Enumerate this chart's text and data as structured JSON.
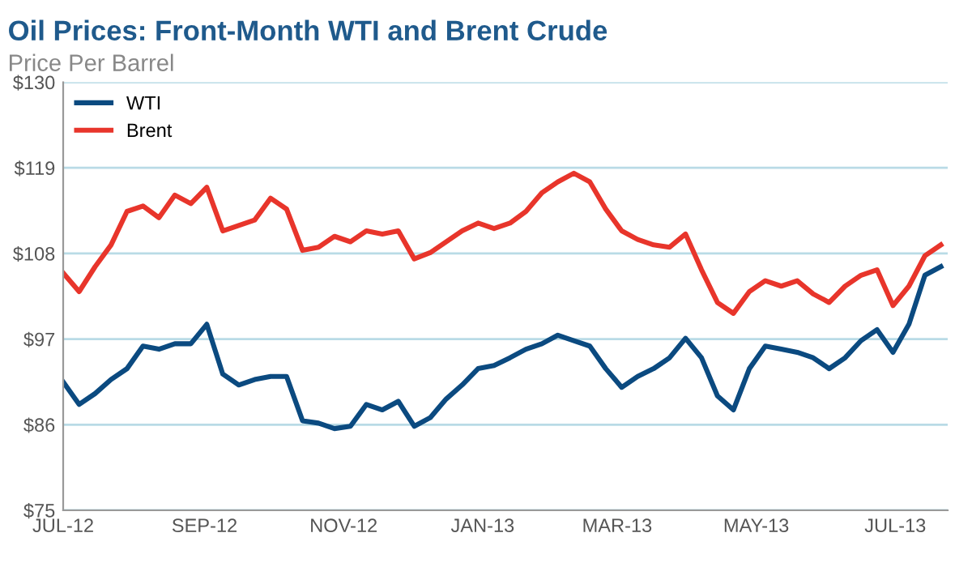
{
  "chart_data": {
    "type": "line",
    "title": "Oil Prices: Front-Month WTI and Brent Crude",
    "subtitle": "Price Per Barrel",
    "x": [
      "2012-07-01",
      "2012-07-08",
      "2012-07-15",
      "2012-07-22",
      "2012-07-29",
      "2012-08-05",
      "2012-08-12",
      "2012-08-19",
      "2012-08-26",
      "2012-09-02",
      "2012-09-09",
      "2012-09-16",
      "2012-09-23",
      "2012-09-30",
      "2012-10-07",
      "2012-10-14",
      "2012-10-21",
      "2012-10-28",
      "2012-11-04",
      "2012-11-11",
      "2012-11-18",
      "2012-11-25",
      "2012-12-02",
      "2012-12-09",
      "2012-12-16",
      "2012-12-23",
      "2012-12-30",
      "2013-01-06",
      "2013-01-13",
      "2013-01-20",
      "2013-01-27",
      "2013-02-03",
      "2013-02-10",
      "2013-02-17",
      "2013-02-24",
      "2013-03-03",
      "2013-03-10",
      "2013-03-17",
      "2013-03-24",
      "2013-03-31",
      "2013-04-07",
      "2013-04-14",
      "2013-04-21",
      "2013-04-28",
      "2013-05-05",
      "2013-05-12",
      "2013-05-19",
      "2013-05-26",
      "2013-06-02",
      "2013-06-09",
      "2013-06-16",
      "2013-06-23",
      "2013-06-30",
      "2013-07-07",
      "2013-07-14",
      "2013-07-21"
    ],
    "series": [
      {
        "name": "WTI",
        "color": "#0b4a80",
        "values": [
          91.5,
          88.6,
          90.0,
          91.8,
          93.2,
          96.1,
          95.7,
          96.4,
          96.4,
          98.9,
          92.5,
          91.1,
          91.8,
          92.2,
          92.2,
          86.5,
          86.2,
          85.5,
          85.8,
          88.6,
          87.9,
          89.0,
          85.8,
          86.9,
          89.3,
          91.1,
          93.2,
          93.6,
          94.6,
          95.7,
          96.4,
          97.5,
          96.8,
          96.1,
          93.2,
          90.8,
          92.2,
          93.2,
          94.6,
          97.1,
          94.6,
          89.7,
          87.9,
          93.2,
          96.1,
          95.7,
          95.3,
          94.6,
          93.2,
          94.6,
          96.8,
          98.2,
          95.3,
          98.9,
          105.2,
          106.3
        ]
      },
      {
        "name": "Brent",
        "color": "#e8352b",
        "values": [
          105.5,
          103.1,
          106.3,
          109.1,
          113.4,
          114.1,
          112.6,
          115.5,
          114.4,
          116.5,
          110.9,
          111.6,
          112.3,
          115.1,
          113.7,
          108.4,
          108.8,
          110.2,
          109.5,
          110.9,
          110.5,
          110.9,
          107.3,
          108.1,
          109.5,
          110.9,
          111.9,
          111.2,
          111.9,
          113.4,
          115.8,
          117.2,
          118.3,
          117.2,
          113.7,
          110.9,
          109.8,
          109.1,
          108.8,
          110.5,
          105.9,
          101.7,
          100.3,
          103.1,
          104.5,
          103.8,
          104.5,
          102.8,
          101.7,
          103.8,
          105.2,
          105.9,
          101.3,
          103.8,
          107.7,
          109.1
        ]
      }
    ],
    "xlim": [
      "2012-07-01",
      "2013-07-24"
    ],
    "xticks": [
      {
        "value": "2012-07-01",
        "label": "JUL-12"
      },
      {
        "value": "2012-09-01",
        "label": "SEP-12"
      },
      {
        "value": "2012-11-01",
        "label": "NOV-12"
      },
      {
        "value": "2013-01-01",
        "label": "JAN-13"
      },
      {
        "value": "2013-03-01",
        "label": "MAR-13"
      },
      {
        "value": "2013-05-01",
        "label": "MAY-13"
      },
      {
        "value": "2013-07-01",
        "label": "JUL-13"
      }
    ],
    "ylim": [
      75,
      130
    ],
    "yticks": [
      {
        "value": 75,
        "label": "$75"
      },
      {
        "value": 86,
        "label": "$86"
      },
      {
        "value": 97,
        "label": "$97"
      },
      {
        "value": 108,
        "label": "$108"
      },
      {
        "value": 119,
        "label": "$119"
      },
      {
        "value": 130,
        "label": "$130"
      }
    ],
    "grid": "y",
    "legend": "top left",
    "marker": "none",
    "line_style": "solid"
  }
}
